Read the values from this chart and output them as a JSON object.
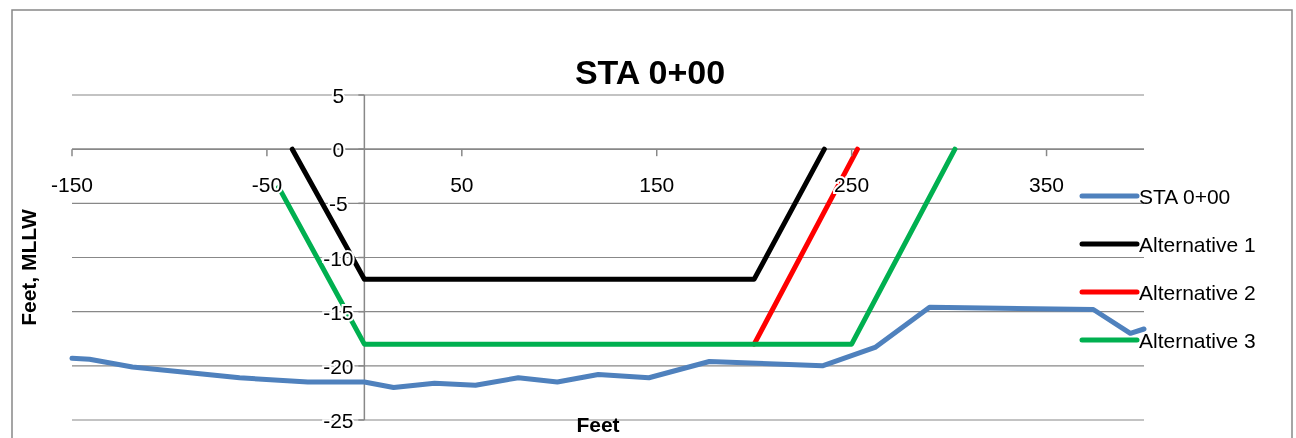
{
  "chart_data": {
    "type": "line",
    "title": "STA 0+00",
    "xlabel": "Feet",
    "ylabel": "Feet, MLLW",
    "xlim": [
      -150,
      400
    ],
    "xticks": [
      -150,
      -50,
      50,
      150,
      250,
      350
    ],
    "ylim": [
      -25,
      5
    ],
    "yticks": [
      5,
      0,
      -5,
      -10,
      -15,
      -20,
      -25
    ],
    "grid": "y",
    "legend": "right",
    "marker": "none",
    "line_style": "solid",
    "series": [
      {
        "name": "STA 0+00",
        "color": "#4f81bd",
        "x": [
          -150,
          -141,
          -119,
          -92,
          -64,
          -29,
          0,
          15,
          36,
          57,
          79,
          99,
          120,
          146,
          177,
          235,
          262,
          290,
          374,
          393,
          400
        ],
        "values": [
          -19.3,
          -19.4,
          -20.1,
          -20.6,
          -21.1,
          -21.5,
          -21.5,
          -22.0,
          -21.6,
          -21.8,
          -21.1,
          -21.5,
          -20.8,
          -21.1,
          -19.6,
          -20.0,
          -18.3,
          -14.6,
          -14.8,
          -17.0,
          -16.6
        ]
      },
      {
        "name": "Alternative 1",
        "color": "#000000",
        "x": [
          -37,
          0,
          200,
          236
        ],
        "values": [
          0,
          -12,
          -12,
          0
        ]
      },
      {
        "name": "Alternative 2",
        "color": "#ff0000",
        "x": [
          200,
          253
        ],
        "values": [
          -18,
          0
        ]
      },
      {
        "name": "Alternative 3",
        "color": "#00b050",
        "x": [
          -44,
          0,
          250,
          303
        ],
        "values": [
          -3.5,
          -18,
          -18,
          0
        ]
      }
    ]
  }
}
